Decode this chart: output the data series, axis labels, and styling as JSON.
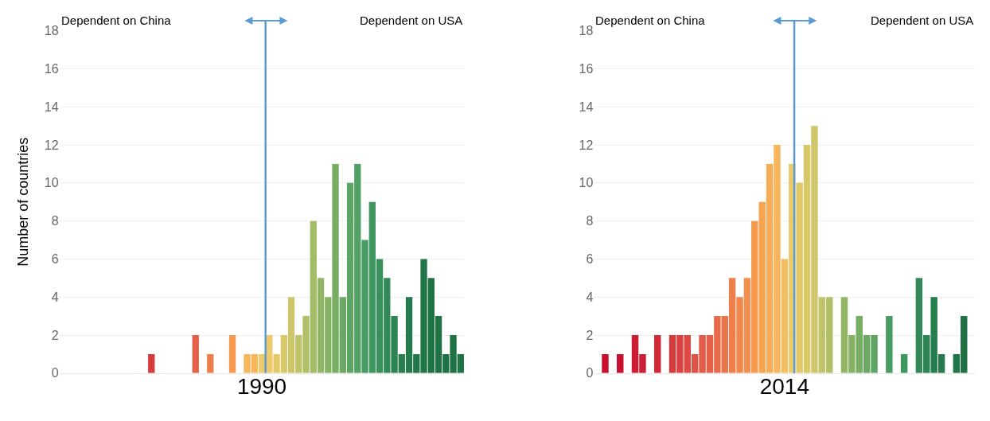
{
  "chart_data": [
    {
      "type": "bar",
      "xlabel": "1990",
      "ylabel": "Number of countries",
      "ylim": [
        0,
        18
      ],
      "yticks": [
        0,
        2,
        4,
        6,
        8,
        10,
        12,
        14,
        16,
        18
      ],
      "grid": "y",
      "tick_labels": "y",
      "categories": [
        null,
        null,
        null,
        null,
        null,
        null,
        null,
        null,
        null,
        null,
        null,
        null,
        null,
        null,
        null,
        null,
        null,
        null,
        null,
        null,
        null,
        null,
        null,
        null,
        null,
        null,
        null,
        null,
        null,
        null,
        null,
        null,
        null,
        null,
        null,
        null,
        null,
        null,
        null,
        null,
        null,
        null,
        null,
        null,
        null,
        null,
        null,
        null,
        null,
        null,
        null,
        null,
        null,
        null,
        null
      ],
      "values": [
        null,
        null,
        null,
        null,
        null,
        null,
        null,
        null,
        null,
        null,
        null,
        null,
        1,
        null,
        null,
        null,
        null,
        null,
        2,
        null,
        1,
        null,
        null,
        2,
        null,
        1,
        1,
        1,
        2,
        1,
        2,
        4,
        2,
        3,
        8,
        5,
        4,
        11,
        4,
        10,
        11,
        7,
        9,
        6,
        5,
        3,
        1,
        4,
        1,
        6,
        5,
        3,
        1,
        2,
        1
      ],
      "colors": [
        null,
        null,
        null,
        null,
        null,
        null,
        null,
        null,
        null,
        null,
        null,
        null,
        "#d63a3a",
        null,
        null,
        null,
        null,
        null,
        "#e5604a",
        null,
        "#ef7f4a",
        null,
        null,
        "#f59a4f",
        null,
        "#f7b55c",
        "#f7b55c",
        "#efca6a",
        "#efca6a",
        "#e3c96a",
        "#d8c86a",
        "#cdc66a",
        "#bfc46a",
        "#b1c068",
        "#a3bc67",
        "#94b766",
        "#86b265",
        "#78ad64",
        "#6aa864",
        "#5ea464",
        "#51a064",
        "#489b62",
        "#3f9660",
        "#38905c",
        "#328a58",
        "#2d8453",
        "#287d4e",
        "#247a4c",
        "#227749",
        "#207546",
        "#1f7244",
        "#1f7244",
        "#1f7244",
        "#1f7244",
        "#1f7244"
      ],
      "annotations": [
        "Dependent on China",
        "Dependent on USA"
      ]
    },
    {
      "type": "bar",
      "xlabel": "2014",
      "ylim": [
        0,
        18
      ],
      "yticks": [
        0,
        2,
        4,
        6,
        8,
        10,
        12,
        14,
        16,
        18
      ],
      "grid": "y",
      "tick_labels": "y",
      "categories": [
        null,
        null,
        null,
        null,
        null,
        null,
        null,
        null,
        null,
        null,
        null,
        null,
        null,
        null,
        null,
        null,
        null,
        null,
        null,
        null,
        null,
        null,
        null,
        null,
        null,
        null,
        null,
        null,
        null,
        null,
        null,
        null,
        null,
        null,
        null,
        null,
        null,
        null,
        null,
        null,
        null,
        null,
        null,
        null,
        null,
        null,
        null,
        null,
        null,
        null,
        null
      ],
      "values": [
        null,
        1,
        null,
        1,
        null,
        2,
        1,
        null,
        2,
        null,
        2,
        2,
        2,
        1,
        2,
        2,
        3,
        3,
        5,
        4,
        5,
        8,
        9,
        11,
        12,
        6,
        11,
        10,
        12,
        13,
        4,
        4,
        null,
        4,
        2,
        3,
        2,
        2,
        null,
        3,
        null,
        1,
        null,
        5,
        2,
        4,
        1,
        null,
        1,
        3,
        null
      ],
      "colors": [
        null,
        "#c8102e",
        null,
        "#c8102e",
        null,
        "#cc1d33",
        "#cc1d33",
        null,
        "#d02a36",
        null,
        "#d63a3a",
        "#d94240",
        "#dc4a43",
        "#df5246",
        "#e25a48",
        "#e5604a",
        "#e86a4a",
        "#eb734a",
        "#ef7f4a",
        "#f2874c",
        "#f4904d",
        "#f59a4f",
        "#f6a352",
        "#f7ac56",
        "#f7b55c",
        "#f2c064",
        "#efca6a",
        "#e3c96a",
        "#d8c86a",
        "#cdc66a",
        "#bfc46a",
        "#b1c068",
        null,
        "#94b766",
        "#86b265",
        "#78ad64",
        "#6aa864",
        "#5ea464",
        null,
        "#489b62",
        null,
        "#3f9660",
        null,
        "#328a58",
        "#2d8453",
        "#287d4e",
        "#247a4c",
        null,
        "#207546",
        "#1f7244",
        null
      ],
      "annotations": [
        "Dependent on China",
        "Dependent on USA"
      ]
    }
  ]
}
